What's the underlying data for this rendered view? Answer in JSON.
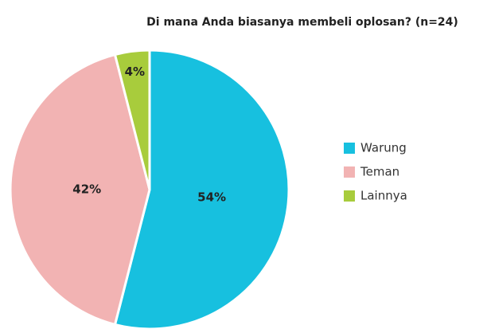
{
  "chart_data": {
    "type": "pie",
    "title": "Di mana Anda biasanya membeli oplosan? (n=24)",
    "categories": [
      "Warung",
      "Teman",
      "Lainnya"
    ],
    "values": [
      54,
      42,
      4
    ],
    "value_labels": [
      "54%",
      "42%",
      "4%"
    ],
    "colors": [
      "#17c0df",
      "#f2b3b3",
      "#a8cc3c"
    ],
    "legend": "right"
  }
}
